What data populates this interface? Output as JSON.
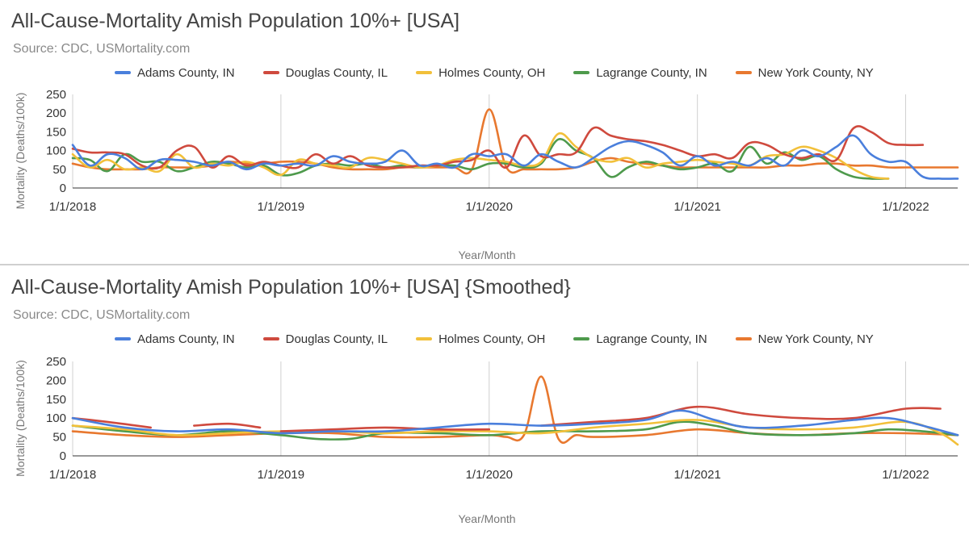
{
  "colors": {
    "Adams County, IN": "#4a7fdc",
    "Douglas County, IL": "#cf4a3e",
    "Holmes County, OH": "#f2c03a",
    "Lagrange County, IN": "#4e9a4c",
    "New York County, NY": "#e8782f"
  },
  "chart_data": [
    {
      "type": "line",
      "title": "All-Cause-Mortality Amish Population 10%+ [USA]",
      "subtitle": "Source: CDC, USMortality.com",
      "xlabel": "Year/Month",
      "ylabel": "Mortality (Deaths/100k)",
      "ylim": [
        0,
        250
      ],
      "yticks": [
        0,
        50,
        100,
        150,
        200,
        250
      ],
      "xlim": [
        2018.0,
        2022.25
      ],
      "xticks": [
        {
          "x": 2018.0,
          "label": "1/1/2018"
        },
        {
          "x": 2019.0,
          "label": "1/1/2019"
        },
        {
          "x": 2020.0,
          "label": "1/1/2020"
        },
        {
          "x": 2021.0,
          "label": "1/1/2021"
        },
        {
          "x": 2022.0,
          "label": "1/1/2022"
        }
      ],
      "legend": "top",
      "grid": "vertical",
      "series": [
        {
          "name": "Adams County, IN",
          "x": [
            2018.0,
            2018.083,
            2018.167,
            2018.25,
            2018.333,
            2018.417,
            2018.5,
            2018.583,
            2018.667,
            2018.75,
            2018.833,
            2018.917,
            2019.0,
            2019.083,
            2019.167,
            2019.25,
            2019.333,
            2019.417,
            2019.5,
            2019.583,
            2019.667,
            2019.75,
            2019.833,
            2019.917,
            2020.0,
            2020.083,
            2020.167,
            2020.25,
            2020.333,
            2020.417,
            2020.5,
            2020.583,
            2020.667,
            2020.75,
            2020.833,
            2020.917,
            2021.0,
            2021.083,
            2021.167,
            2021.25,
            2021.333,
            2021.417,
            2021.5,
            2021.583,
            2021.667,
            2021.75,
            2021.833,
            2021.917,
            2022.0,
            2022.083,
            2022.167,
            2022.25
          ],
          "values": [
            115,
            60,
            90,
            80,
            50,
            75,
            75,
            70,
            60,
            70,
            50,
            65,
            60,
            65,
            60,
            85,
            70,
            65,
            70,
            100,
            60,
            65,
            55,
            90,
            85,
            90,
            60,
            90,
            70,
            55,
            80,
            110,
            125,
            115,
            95,
            60,
            85,
            60,
            70,
            60,
            80,
            60,
            100,
            85,
            110,
            140,
            90,
            70,
            70,
            30,
            25,
            25
          ]
        },
        {
          "name": "Douglas County, IL",
          "x": [
            2018.0,
            2018.083,
            2018.167,
            2018.25,
            2018.333,
            2018.417,
            2018.5,
            2018.583,
            2018.667,
            2018.75,
            2018.833,
            2018.917,
            2019.0,
            2019.083,
            2019.167,
            2019.25,
            2019.333,
            2019.417,
            2019.5,
            2019.583,
            2019.667,
            2019.75,
            2019.833,
            2019.917,
            2020.0,
            2020.083,
            2020.167,
            2020.25,
            2020.333,
            2020.417,
            2020.5,
            2020.583,
            2020.667,
            2020.75,
            2020.833,
            2020.917,
            2021.0,
            2021.083,
            2021.167,
            2021.25,
            2021.333,
            2021.417,
            2021.5,
            2021.583,
            2021.667,
            2021.75,
            2021.833,
            2021.917,
            2022.0,
            2022.083,
            2022.167,
            2022.25
          ],
          "values": [
            105,
            95,
            95,
            90,
            60,
            55,
            100,
            110,
            55,
            85,
            60,
            70,
            60,
            55,
            90,
            65,
            85,
            60,
            55,
            55,
            60,
            60,
            70,
            75,
            100,
            55,
            140,
            85,
            90,
            95,
            160,
            140,
            130,
            125,
            115,
            100,
            85,
            90,
            80,
            120,
            115,
            90,
            80,
            90,
            75,
            160,
            150,
            120,
            115,
            115,
            null,
            null
          ]
        },
        {
          "name": "Holmes County, OH",
          "x": [
            2018.0,
            2018.083,
            2018.167,
            2018.25,
            2018.333,
            2018.417,
            2018.5,
            2018.583,
            2018.667,
            2018.75,
            2018.833,
            2018.917,
            2019.0,
            2019.083,
            2019.167,
            2019.25,
            2019.333,
            2019.417,
            2019.5,
            2019.583,
            2019.667,
            2019.75,
            2019.833,
            2019.917,
            2020.0,
            2020.083,
            2020.167,
            2020.25,
            2020.333,
            2020.417,
            2020.5,
            2020.583,
            2020.667,
            2020.75,
            2020.833,
            2020.917,
            2021.0,
            2021.083,
            2021.167,
            2021.25,
            2021.333,
            2021.417,
            2021.5,
            2021.583,
            2021.667,
            2021.75,
            2021.833,
            2021.917,
            2022.0,
            2022.083,
            2022.167,
            2022.25
          ],
          "values": [
            90,
            55,
            75,
            50,
            55,
            45,
            90,
            55,
            65,
            60,
            70,
            55,
            35,
            75,
            65,
            60,
            55,
            80,
            75,
            65,
            55,
            60,
            75,
            80,
            75,
            70,
            60,
            70,
            145,
            110,
            80,
            70,
            80,
            55,
            65,
            70,
            75,
            70,
            65,
            60,
            85,
            90,
            110,
            100,
            80,
            50,
            30,
            25,
            null,
            null,
            null,
            null
          ]
        },
        {
          "name": "Lagrange County, IN",
          "x": [
            2018.0,
            2018.083,
            2018.167,
            2018.25,
            2018.333,
            2018.417,
            2018.5,
            2018.583,
            2018.667,
            2018.75,
            2018.833,
            2018.917,
            2019.0,
            2019.083,
            2019.167,
            2019.25,
            2019.333,
            2019.417,
            2019.5,
            2019.583,
            2019.667,
            2019.75,
            2019.833,
            2019.917,
            2020.0,
            2020.083,
            2020.167,
            2020.25,
            2020.333,
            2020.417,
            2020.5,
            2020.583,
            2020.667,
            2020.75,
            2020.833,
            2020.917,
            2021.0,
            2021.083,
            2021.167,
            2021.25,
            2021.333,
            2021.417,
            2021.5,
            2021.583,
            2021.667,
            2021.75,
            2021.833,
            2021.917,
            2022.0,
            2022.083,
            2022.167,
            2022.25
          ],
          "values": [
            80,
            75,
            45,
            90,
            70,
            70,
            45,
            55,
            70,
            65,
            55,
            60,
            35,
            40,
            60,
            65,
            60,
            65,
            55,
            60,
            55,
            60,
            60,
            50,
            65,
            65,
            55,
            65,
            130,
            100,
            80,
            30,
            55,
            70,
            60,
            50,
            55,
            65,
            45,
            110,
            65,
            95,
            75,
            85,
            50,
            30,
            25,
            25,
            null,
            null,
            null,
            null
          ]
        },
        {
          "name": "New York County, NY",
          "x": [
            2018.0,
            2018.083,
            2018.167,
            2018.25,
            2018.333,
            2018.417,
            2018.5,
            2018.583,
            2018.667,
            2018.75,
            2018.833,
            2018.917,
            2019.0,
            2019.083,
            2019.167,
            2019.25,
            2019.333,
            2019.417,
            2019.5,
            2019.583,
            2019.667,
            2019.75,
            2019.833,
            2019.917,
            2020.0,
            2020.083,
            2020.167,
            2020.25,
            2020.333,
            2020.417,
            2020.5,
            2020.583,
            2020.667,
            2020.75,
            2020.833,
            2020.917,
            2021.0,
            2021.083,
            2021.167,
            2021.25,
            2021.333,
            2021.417,
            2021.5,
            2021.583,
            2021.667,
            2021.75,
            2021.833,
            2021.917,
            2022.0,
            2022.083,
            2022.167,
            2022.25
          ],
          "values": [
            65,
            55,
            50,
            50,
            50,
            55,
            55,
            55,
            60,
            70,
            65,
            65,
            70,
            70,
            65,
            55,
            50,
            50,
            50,
            55,
            55,
            55,
            55,
            50,
            210,
            55,
            50,
            50,
            50,
            55,
            70,
            80,
            70,
            65,
            60,
            55,
            55,
            55,
            55,
            55,
            55,
            60,
            60,
            65,
            65,
            60,
            60,
            55,
            55,
            55,
            55,
            55
          ]
        }
      ]
    },
    {
      "type": "line",
      "title": "All-Cause-Mortality Amish Population 10%+ [USA] {Smoothed}",
      "subtitle": "Source: CDC, USMortality.com",
      "xlabel": "Year/Month",
      "ylabel": "Mortality (Deaths/100k)",
      "ylim": [
        0,
        250
      ],
      "yticks": [
        0,
        50,
        100,
        150,
        200,
        250
      ],
      "xlim": [
        2018.0,
        2022.25
      ],
      "xticks": [
        {
          "x": 2018.0,
          "label": "1/1/2018"
        },
        {
          "x": 2019.0,
          "label": "1/1/2019"
        },
        {
          "x": 2020.0,
          "label": "1/1/2020"
        },
        {
          "x": 2021.0,
          "label": "1/1/2021"
        },
        {
          "x": 2022.0,
          "label": "1/1/2022"
        }
      ],
      "legend": "top",
      "grid": "vertical",
      "series": [
        {
          "name": "Adams County, IN",
          "x": [
            2018.0,
            2018.25,
            2018.5,
            2018.75,
            2019.0,
            2019.25,
            2019.5,
            2019.75,
            2020.0,
            2020.25,
            2020.5,
            2020.75,
            2020.917,
            2021.083,
            2021.25,
            2021.5,
            2021.75,
            2021.917,
            2022.083,
            2022.25
          ],
          "values": [
            100,
            75,
            65,
            70,
            60,
            65,
            65,
            75,
            85,
            80,
            85,
            95,
            120,
            95,
            75,
            80,
            95,
            100,
            80,
            55
          ]
        },
        {
          "name": "Douglas County, IL",
          "x": [
            2018.0,
            2018.167,
            2018.375,
            null,
            2018.583,
            2018.75,
            2018.9,
            null,
            2019.0,
            2019.25,
            2019.5,
            2019.75,
            2020.0,
            null,
            2020.25,
            2020.5,
            2020.75,
            2021.0,
            2021.25,
            2021.5,
            2021.75,
            2022.0,
            2022.167
          ],
          "values": [
            100,
            90,
            75,
            null,
            80,
            85,
            75,
            null,
            65,
            70,
            75,
            70,
            70,
            null,
            80,
            90,
            100,
            130,
            110,
            100,
            100,
            125,
            125
          ]
        },
        {
          "name": "Holmes County, OH",
          "x": [
            2018.0,
            2018.25,
            2018.5,
            2018.75,
            2019.0,
            2019.25,
            2019.5,
            2019.75,
            2020.0,
            2020.25,
            2020.5,
            2020.75,
            2021.0,
            2021.25,
            2021.5,
            2021.75,
            2022.0,
            2022.167,
            2022.25
          ],
          "values": [
            80,
            70,
            55,
            60,
            65,
            65,
            60,
            65,
            65,
            60,
            75,
            85,
            95,
            75,
            70,
            75,
            90,
            60,
            30
          ]
        },
        {
          "name": "Lagrange County, IN",
          "x": [
            2018.0,
            2018.25,
            2018.5,
            2018.75,
            2019.0,
            2019.167,
            2019.333,
            2019.5,
            2019.75,
            2020.0,
            2020.25,
            2020.5,
            2020.75,
            2020.917,
            2021.083,
            2021.25,
            2021.5,
            2021.75,
            2021.917,
            2022.083,
            2022.25
          ],
          "values": [
            80,
            65,
            55,
            65,
            55,
            45,
            45,
            60,
            60,
            55,
            65,
            65,
            70,
            90,
            80,
            60,
            55,
            60,
            70,
            65,
            55
          ]
        },
        {
          "name": "New York County, NY",
          "x": [
            2018.0,
            2018.25,
            2018.5,
            2018.75,
            2019.0,
            2019.25,
            2019.5,
            2019.75,
            2020.0,
            2020.083,
            2020.167,
            2020.25,
            2020.333,
            2020.417,
            2020.5,
            2020.75,
            2021.0,
            2021.25,
            2021.5,
            2021.75,
            2022.0,
            2022.25
          ],
          "values": [
            65,
            55,
            50,
            55,
            60,
            60,
            50,
            50,
            55,
            50,
            55,
            210,
            45,
            55,
            50,
            55,
            70,
            60,
            55,
            60,
            60,
            55
          ]
        }
      ]
    }
  ]
}
